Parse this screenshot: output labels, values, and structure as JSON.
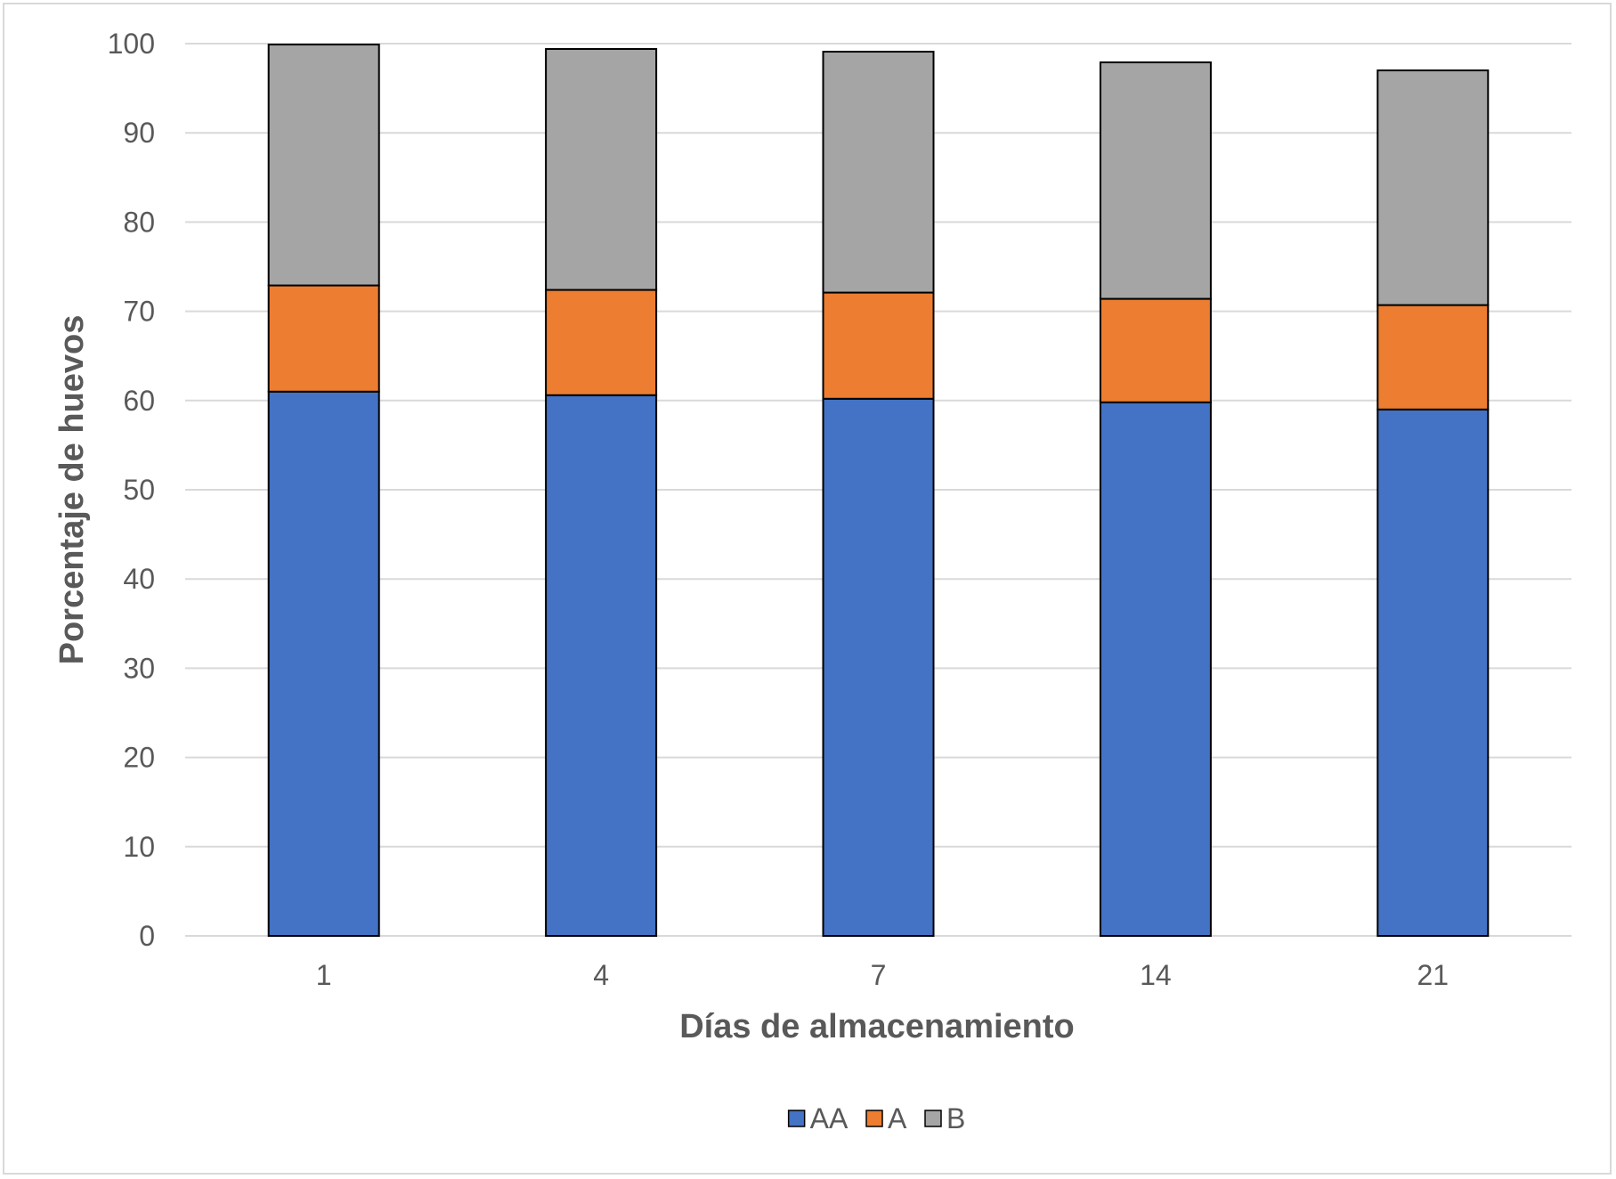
{
  "chart_data": {
    "type": "bar",
    "stacked": true,
    "title": "",
    "xlabel": "Días de almacenamiento",
    "ylabel": "Porcentaje de huevos",
    "categories": [
      "1",
      "4",
      "7",
      "14",
      "21"
    ],
    "series": [
      {
        "name": "AA",
        "color": "#4472c4",
        "values": [
          61.0,
          60.6,
          60.2,
          59.8,
          59.0
        ]
      },
      {
        "name": "A",
        "color": "#ed7d31",
        "values": [
          11.9,
          11.8,
          11.9,
          11.6,
          11.7
        ]
      },
      {
        "name": "B",
        "color": "#a5a5a5",
        "values": [
          27.0,
          27.0,
          27.0,
          26.5,
          26.3
        ]
      }
    ],
    "ylim": [
      0,
      100
    ],
    "yticks": [
      0,
      10,
      20,
      30,
      40,
      50,
      60,
      70,
      80,
      90,
      100
    ],
    "grid": true,
    "legend_position": "bottom"
  }
}
